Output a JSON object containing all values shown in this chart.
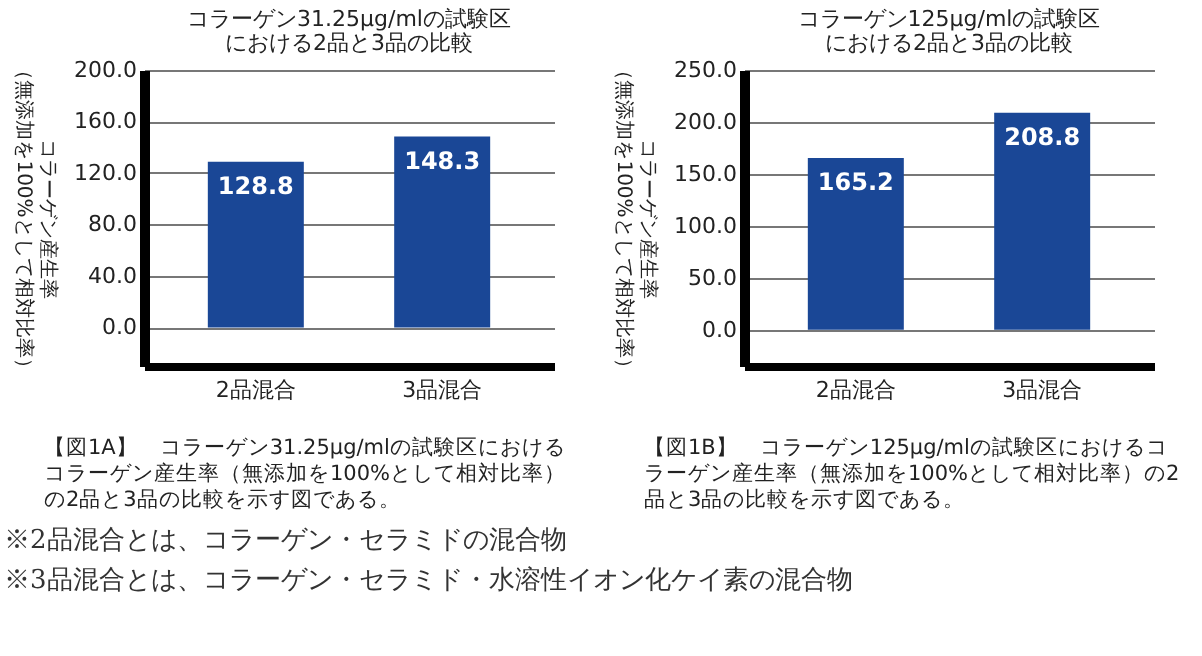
{
  "chart_data": [
    {
      "type": "bar",
      "title": "コラーゲン31.25μg/mlの試験区",
      "subtitle": "における2品と3品の比較",
      "ylabel": "コラーゲン産生率（無添加を100%として相対比率）",
      "categories": [
        "2品混合",
        "3品混合"
      ],
      "values": [
        128.8,
        148.3
      ],
      "color": "#1a4796",
      "ylim": [
        -30,
        200
      ],
      "yticks": [
        {
          "value": 0,
          "label": "0.0"
        },
        {
          "value": 40,
          "label": "40.0"
        },
        {
          "value": 80,
          "label": "80.0"
        },
        {
          "value": 120,
          "label": "120.0"
        },
        {
          "value": 160,
          "label": "160.0"
        },
        {
          "value": 200,
          "label": "200.0"
        }
      ],
      "grid": "y",
      "data_labels": true,
      "annotations": [
        "【図1A】　コラーゲン31.25μg/mlの試験区におけるコラーゲン産生率（無添加を100%として相対比率）の2品と3品の比較を示す図である。",
        "※2品混合とは、コラーゲン・セラミドの混合物",
        "※3品混合とは、コラーゲン・セラミド・水溶性イオン化ケイ素の混合物"
      ]
    },
    {
      "type": "bar",
      "title": "コラーゲン125μg/mlの試験区",
      "subtitle": "における2品と3品の比較",
      "ylabel": "コラーゲン産生率（無添加を100%として相対比率）",
      "categories": [
        "2品混合",
        "3品混合"
      ],
      "values": [
        165.2,
        208.8
      ],
      "color": "#1a4796",
      "ylim": [
        -35,
        250
      ],
      "yticks": [
        {
          "value": 0,
          "label": "0.0"
        },
        {
          "value": 50,
          "label": "50.0"
        },
        {
          "value": 100,
          "label": "100.0"
        },
        {
          "value": 150,
          "label": "150.0"
        },
        {
          "value": 200,
          "label": "200.0"
        },
        {
          "value": 250,
          "label": "250.0"
        }
      ],
      "grid": "y",
      "data_labels": true,
      "annotations": [
        "【図1B】　コラーゲン125μg/mlの試験区におけるコラーゲン産生率（無添加を100%として相対比率）の2品と3品の比較を示す図である。"
      ]
    }
  ]
}
